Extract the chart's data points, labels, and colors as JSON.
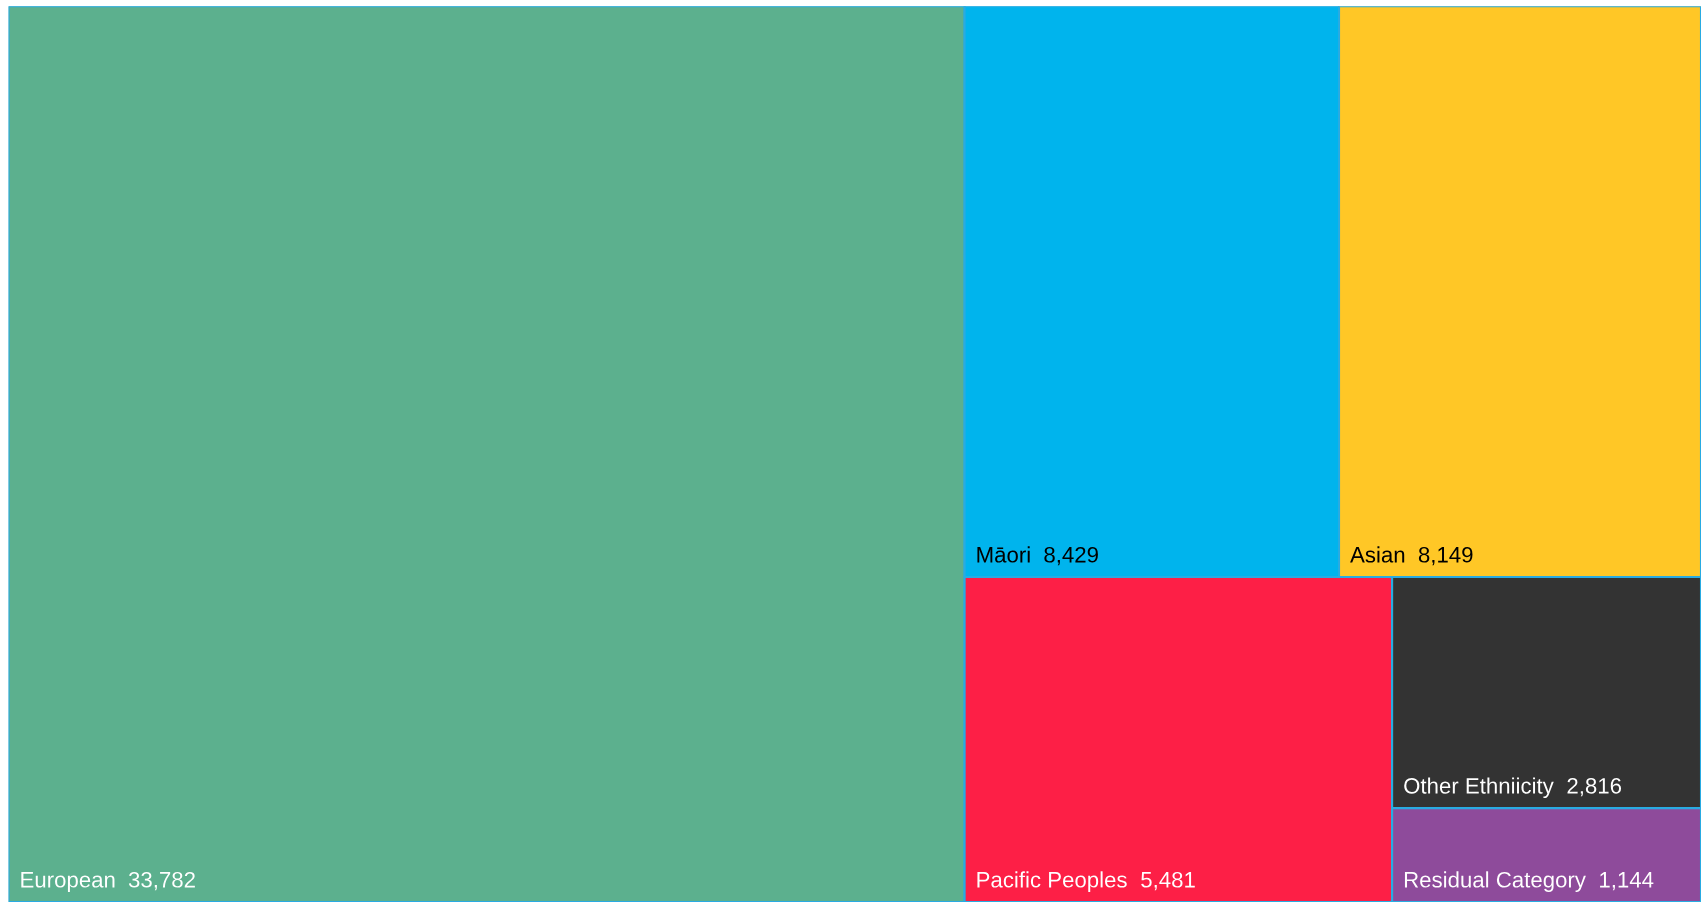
{
  "chart_data": {
    "type": "other",
    "categories": [
      "European",
      "Māori",
      "Asian",
      "Pacific Peoples",
      "Other Ethniicity",
      "Residual Category"
    ],
    "values": [
      33782,
      8429,
      8149,
      5481,
      2816,
      1144
    ],
    "colors": [
      "#5cb08e",
      "#00b4ed",
      "#ffc726",
      "#fd1f46",
      "#333333",
      "#8e4b9b"
    ],
    "value_labels": [
      "33,782",
      "8,429",
      "8,149",
      "5,481",
      "2,816",
      "1,144"
    ]
  }
}
